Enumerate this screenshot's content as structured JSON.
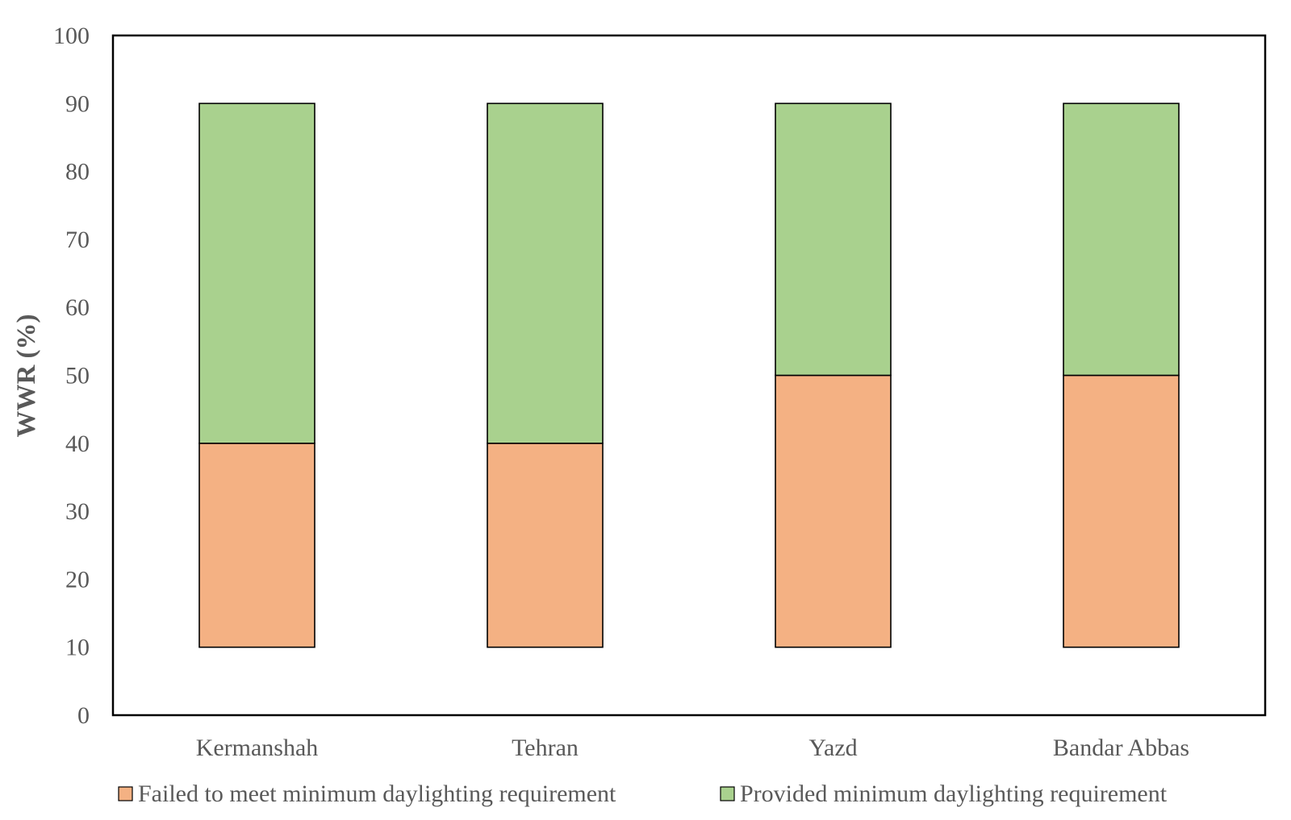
{
  "chart_data": {
    "type": "bar",
    "stacked": true,
    "categories": [
      "Kermanshah",
      "Tehran",
      "Yazd",
      "Bandar Abbas"
    ],
    "base": [
      10,
      10,
      10,
      10
    ],
    "series": [
      {
        "name": "Failed to meet minimum daylighting requirement",
        "values": [
          30,
          30,
          40,
          40
        ],
        "color": "#F4B183"
      },
      {
        "name": "Provided minimum daylighting requirement",
        "values": [
          50,
          50,
          40,
          40
        ],
        "color": "#A9D18E"
      }
    ],
    "ylabel": "WWR (%)",
    "ylim": [
      0,
      100
    ],
    "yticks": [
      0,
      10,
      20,
      30,
      40,
      50,
      60,
      70,
      80,
      90,
      100
    ],
    "grid": false,
    "legend": "bottom"
  }
}
